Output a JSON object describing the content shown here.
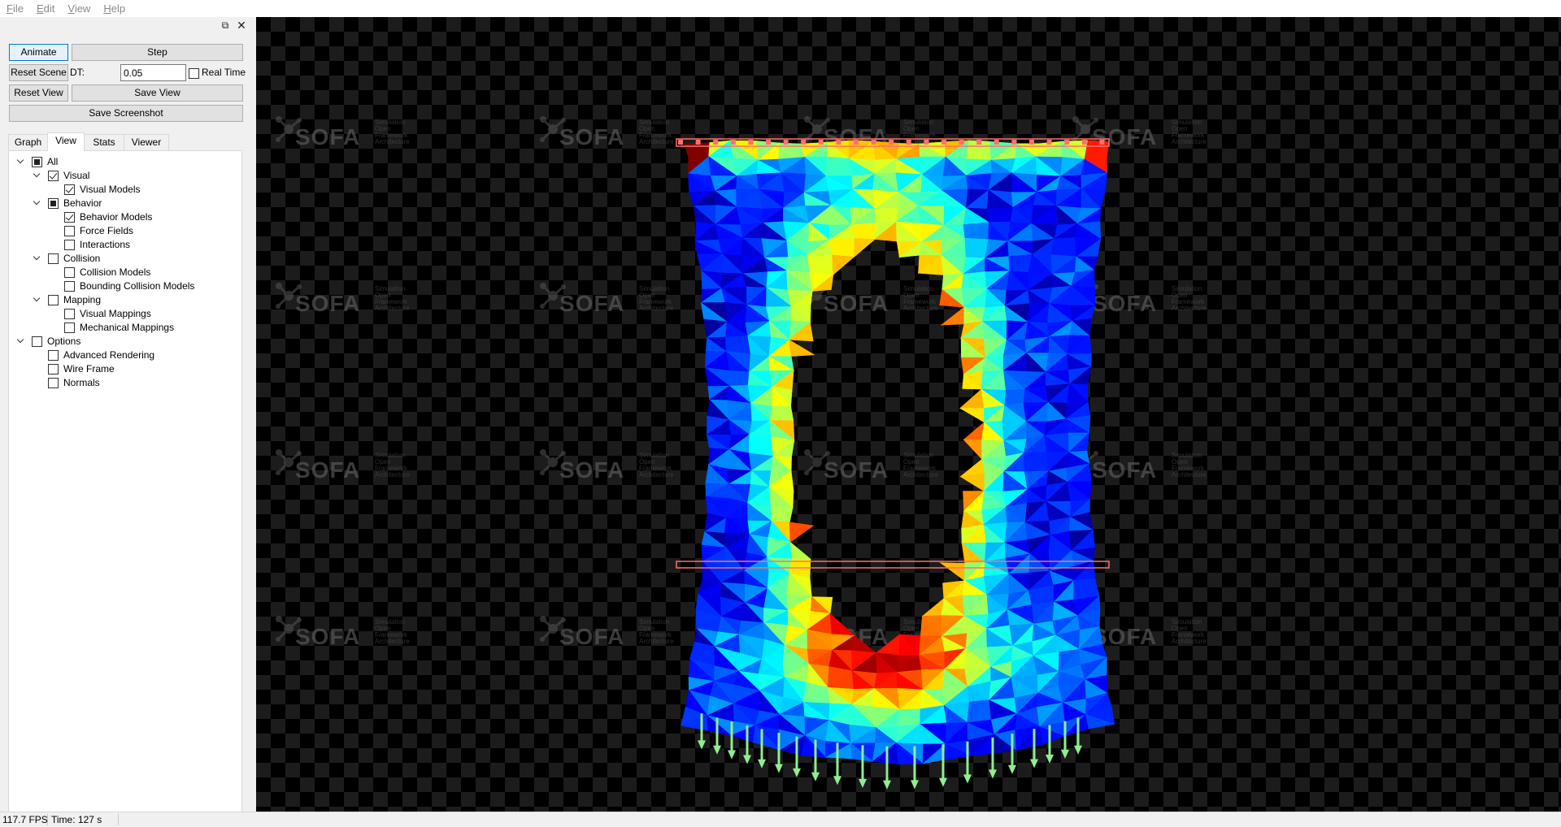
{
  "menu": [
    "File",
    "Edit",
    "View",
    "Help"
  ],
  "controls": {
    "animate_label": "Animate",
    "step_label": "Step",
    "reset_scene_label": "Reset Scene",
    "dt_label": "DT:",
    "dt_value": "0.05",
    "real_time_label": "Real Time",
    "reset_view_label": "Reset View",
    "save_view_label": "Save View",
    "save_screenshot_label": "Save Screenshot"
  },
  "tabs": [
    "Graph",
    "View",
    "Stats",
    "Viewer"
  ],
  "active_tab": "View",
  "tree": [
    {
      "label": "All",
      "state": "partial",
      "expanded": true,
      "level": 0
    },
    {
      "label": "Visual",
      "state": "checked",
      "expanded": true,
      "level": 1
    },
    {
      "label": "Visual Models",
      "state": "checked",
      "level": 2
    },
    {
      "label": "Behavior",
      "state": "partial",
      "expanded": true,
      "level": 1
    },
    {
      "label": "Behavior Models",
      "state": "checked",
      "level": 2
    },
    {
      "label": "Force Fields",
      "state": "unchecked",
      "level": 2
    },
    {
      "label": "Interactions",
      "state": "unchecked",
      "level": 2
    },
    {
      "label": "Collision",
      "state": "unchecked",
      "expanded": true,
      "level": 1
    },
    {
      "label": "Collision Models",
      "state": "unchecked",
      "level": 2
    },
    {
      "label": "Bounding Collision Models",
      "state": "unchecked",
      "level": 2
    },
    {
      "label": "Mapping",
      "state": "unchecked",
      "expanded": true,
      "level": 1
    },
    {
      "label": "Visual Mappings",
      "state": "unchecked",
      "level": 2
    },
    {
      "label": "Mechanical Mappings",
      "state": "unchecked",
      "level": 2
    },
    {
      "label": "Options",
      "state": "unchecked",
      "expanded": true,
      "level": 0
    },
    {
      "label": "Advanced Rendering",
      "state": "unchecked",
      "level": 1
    },
    {
      "label": "Wire Frame",
      "state": "unchecked",
      "level": 1
    },
    {
      "label": "Normals",
      "state": "unchecked",
      "level": 1
    }
  ],
  "watermark": {
    "logo_text": "SOFA",
    "subtitle": [
      "Simulation",
      "Open",
      "Framework",
      "Architecture"
    ]
  },
  "status": {
    "fps": "117.7 FPS",
    "time": "Time: 127 s"
  },
  "colors": {
    "viewer_bg": "#000000",
    "checker": "#1c1c1c",
    "force_arrow": "#90ee90",
    "fixed_box": "#ff6f6f",
    "mesh_blue": "#1040ff",
    "mesh_cyan": "#00d8ff",
    "mesh_green": "#20e020",
    "mesh_yellow": "#e8e800",
    "mesh_red": "#ff1000"
  }
}
